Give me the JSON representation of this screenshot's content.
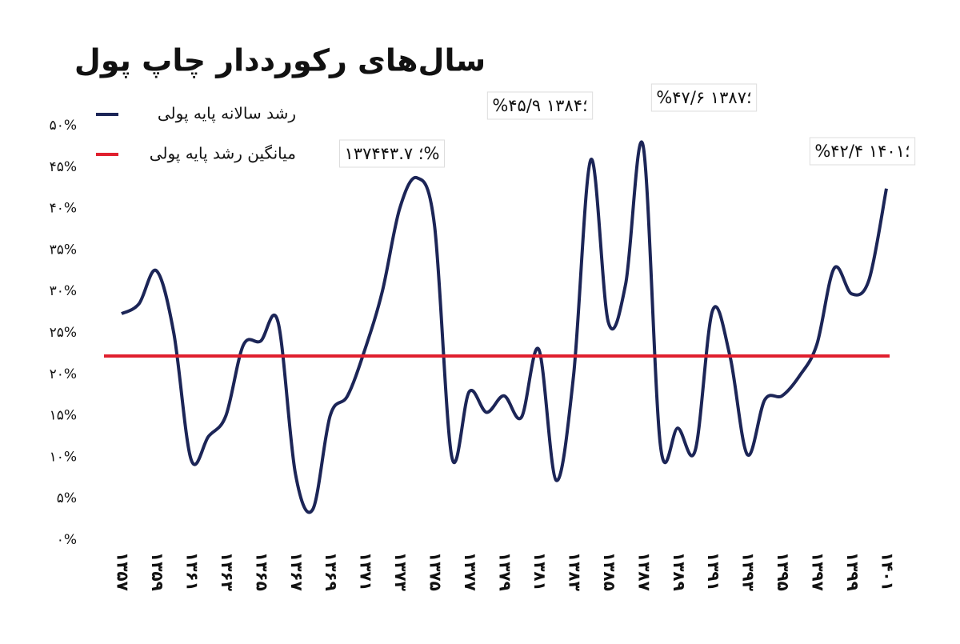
{
  "chart_data": {
    "type": "line",
    "title": "سال‌های رکورددار چاپ پول",
    "categories": [
      "۱۳۵۷",
      null,
      "۱۳۵۹",
      null,
      "۱۳۶۱",
      null,
      "۱۳۶۳",
      null,
      "۱۳۶۵",
      null,
      "۱۳۶۷",
      null,
      "۱۳۶۹",
      null,
      "۱۳۷۱",
      null,
      "۱۳۷۳",
      null,
      "۱۳۷۵",
      null,
      "۱۳۷۷",
      null,
      "۱۳۷۹",
      null,
      "۱۳۸۱",
      null,
      "۱۳۸۳",
      null,
      "۱۳۸۵",
      null,
      "۱۳۸۷",
      null,
      "۱۳۸۹",
      null,
      "۱۳۹۱",
      null,
      "۱۳۹۳",
      null,
      "۱۳۹۵",
      null,
      "۱۳۹۷",
      null,
      "۱۳۹۹",
      null,
      "۱۴۰۱"
    ],
    "series": [
      {
        "name": "رشد سالانه پایه پولی",
        "color": "#1c2557",
        "values": [
          27.3,
          28.5,
          32.5,
          25,
          9.7,
          12.5,
          15,
          23.5,
          24,
          26.3,
          8,
          3.7,
          15,
          17.4,
          23,
          30,
          40,
          43.7,
          38,
          10,
          17.9,
          15.4,
          17.4,
          14.8,
          23,
          7.2,
          19.8,
          45.9,
          26.3,
          30.9,
          47.6,
          11.4,
          13.5,
          10.8,
          27.7,
          22.2,
          10.3,
          16.9,
          17.4,
          19.8,
          23.6,
          32.8,
          29.7,
          31.4,
          42.4
        ]
      },
      {
        "name": "میانگین رشد پایه پولی",
        "color": "#e0202e",
        "value": 22.2
      }
    ],
    "annotations": [
      "۱۳۷۴؛ ۴۳.۷%",
      "%۴۵/۹ ؛۱۳۸۴",
      "%۴۷/۶ ؛۱۳۸۷",
      "%۴۲/۴ ؛۱۴۰۱"
    ],
    "ylim": [
      0,
      50
    ],
    "yticks": [
      {
        "value": 0,
        "label": "۰%"
      },
      {
        "value": 5,
        "label": "۵%"
      },
      {
        "value": 10,
        "label": "۱۰%"
      },
      {
        "value": 15,
        "label": "۱۵%"
      },
      {
        "value": 20,
        "label": "۲۰%"
      },
      {
        "value": 25,
        "label": "۲۵%"
      },
      {
        "value": 30,
        "label": "۳۰%"
      },
      {
        "value": 35,
        "label": "۳۵%"
      },
      {
        "value": 40,
        "label": "۴۰%"
      },
      {
        "value": 45,
        "label": "۴۵%"
      },
      {
        "value": 50,
        "label": "۵۰%"
      }
    ],
    "grid": false
  }
}
